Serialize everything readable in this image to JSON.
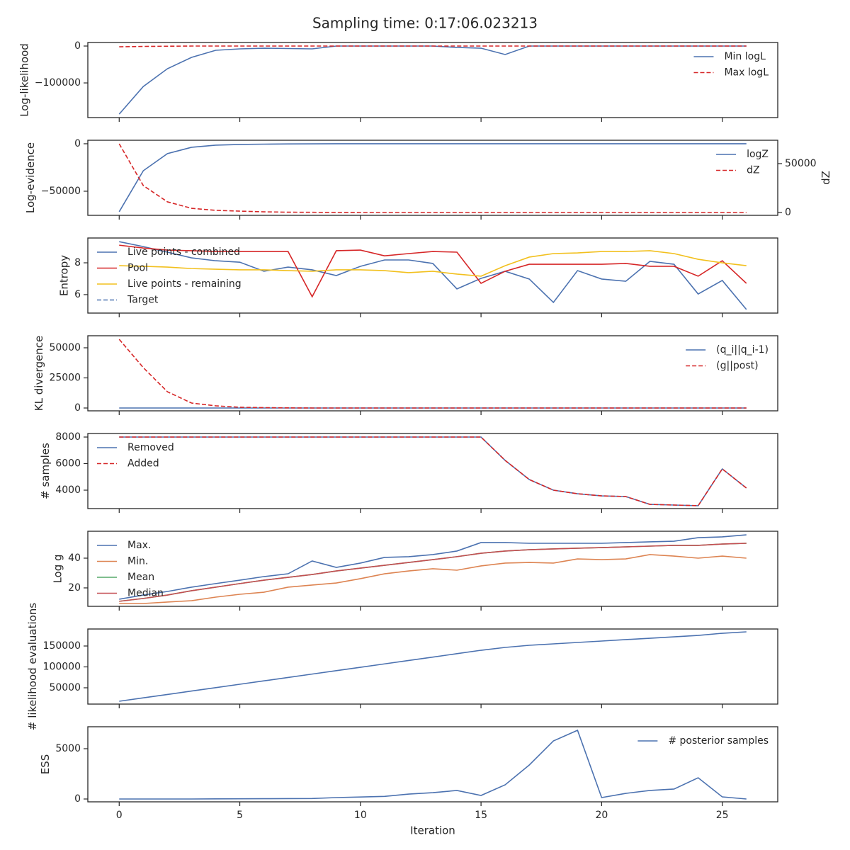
{
  "title": "Sampling time: 0:17:06.023213",
  "chart_data": [
    {
      "type": "line",
      "ylabel": "Log-likelihood",
      "legend": "upper right",
      "x": [
        0,
        1,
        2,
        3,
        4,
        5,
        6,
        7,
        8,
        9,
        10,
        11,
        12,
        13,
        14,
        15,
        16,
        17,
        18,
        19,
        20,
        21,
        22,
        23,
        24,
        25,
        26
      ],
      "xlim": [
        -1.3,
        27.3
      ],
      "ylim": [
        -194000,
        9600
      ],
      "yticks": [
        {
          "value": -100000,
          "label": "−100000"
        },
        0
      ],
      "series": [
        {
          "name": "Min logL",
          "color": "#4c72b0",
          "linestyle": "solid",
          "values": [
            -184600,
            -109600,
            -61500,
            -30800,
            -11500,
            -7700,
            -5800,
            -6700,
            -7700,
            0,
            0,
            0,
            0,
            0,
            -3800,
            -5800,
            -23000,
            0,
            0,
            0,
            0,
            0,
            0,
            0,
            0,
            0,
            0
          ]
        },
        {
          "name": "Max logL",
          "color": "#d62728",
          "linestyle": "dashed",
          "values": [
            -2000,
            -1000,
            -500,
            0,
            0,
            0,
            0,
            0,
            0,
            0,
            0,
            0,
            0,
            0,
            0,
            0,
            0,
            0,
            0,
            0,
            0,
            0,
            0,
            0,
            0,
            0,
            0
          ]
        }
      ]
    },
    {
      "type": "line",
      "ylabel": "Log-evidence",
      "y2label": "dZ",
      "legend": "upper right",
      "x": [
        0,
        1,
        2,
        3,
        4,
        5,
        6,
        7,
        8,
        9,
        10,
        11,
        12,
        13,
        14,
        15,
        16,
        17,
        18,
        19,
        20,
        21,
        22,
        23,
        24,
        25,
        26
      ],
      "xlim": [
        -1.3,
        27.3
      ],
      "ylim": [
        -75400,
        3700
      ],
      "yticks": [
        {
          "value": -50000,
          "label": "−50000"
        },
        0
      ],
      "y2lim": [
        -2900,
        73900
      ],
      "y2ticks": [
        0,
        50000
      ],
      "series": [
        {
          "name": "logZ",
          "color": "#4c72b0",
          "linestyle": "solid",
          "values": [
            -71600,
            -28400,
            -10400,
            -3700,
            -1500,
            -700,
            -400,
            -200,
            -100,
            0,
            0,
            0,
            0,
            0,
            0,
            0,
            0,
            0,
            0,
            0,
            0,
            0,
            0,
            0,
            0,
            0,
            0
          ]
        },
        {
          "name": "dZ",
          "color": "#d62728",
          "linestyle": "dashed",
          "axis": "y2",
          "values": [
            70300,
            27500,
            10900,
            4300,
            2200,
            1400,
            700,
            300,
            200,
            100,
            0,
            0,
            0,
            0,
            0,
            0,
            0,
            0,
            0,
            0,
            0,
            0,
            0,
            0,
            0,
            0,
            0
          ]
        }
      ]
    },
    {
      "type": "line",
      "ylabel": "Entropy",
      "legend": "upper left",
      "x": [
        0,
        1,
        2,
        3,
        4,
        5,
        6,
        7,
        8,
        9,
        10,
        11,
        12,
        13,
        14,
        15,
        16,
        17,
        18,
        19,
        20,
        21,
        22,
        23,
        24,
        25,
        26
      ],
      "xlim": [
        -1.3,
        27.3
      ],
      "ylim": [
        4.84,
        9.56
      ],
      "yticks": [
        6,
        8
      ],
      "series": [
        {
          "name": "Live points - combined",
          "color": "#4c72b0",
          "linestyle": "solid",
          "values": [
            9.33,
            9.02,
            8.67,
            8.31,
            8.13,
            8.04,
            7.47,
            7.73,
            7.56,
            7.2,
            7.78,
            8.18,
            8.18,
            7.96,
            6.36,
            7.02,
            7.47,
            6.98,
            5.51,
            7.51,
            6.98,
            6.84,
            8.09,
            7.91,
            6.04,
            6.89,
            5.07
          ]
        },
        {
          "name": "Pool",
          "color": "#d62728",
          "linestyle": "solid",
          "values": [
            9.11,
            8.93,
            8.8,
            8.76,
            8.71,
            8.71,
            8.71,
            8.71,
            5.87,
            8.76,
            8.8,
            8.44,
            8.58,
            8.71,
            8.67,
            6.71,
            7.47,
            7.91,
            7.91,
            7.91,
            7.91,
            7.96,
            7.78,
            7.78,
            7.16,
            8.13,
            6.71
          ]
        },
        {
          "name": "Live points - remaining",
          "color": "#f2c01e",
          "linestyle": "solid",
          "values": [
            7.82,
            7.78,
            7.73,
            7.64,
            7.6,
            7.56,
            7.56,
            7.51,
            7.47,
            7.56,
            7.56,
            7.51,
            7.38,
            7.47,
            7.29,
            7.16,
            7.82,
            8.36,
            8.58,
            8.62,
            8.71,
            8.71,
            8.76,
            8.58,
            8.22,
            8.0,
            7.82
          ]
        },
        {
          "name": "Target",
          "color": "#4c72b0",
          "linestyle": "dashed",
          "values": [
            null,
            null,
            null,
            null,
            null,
            null,
            null,
            null,
            null,
            null,
            null,
            null,
            null,
            null,
            null,
            null,
            null,
            null,
            null,
            null,
            null,
            null,
            null,
            null,
            null,
            null,
            null
          ]
        }
      ]
    },
    {
      "type": "line",
      "ylabel": "KL divergence",
      "legend": "upper right",
      "x": [
        0,
        1,
        2,
        3,
        4,
        5,
        6,
        7,
        8,
        9,
        10,
        11,
        12,
        13,
        14,
        15,
        16,
        17,
        18,
        19,
        20,
        21,
        22,
        23,
        24,
        25,
        26
      ],
      "xlim": [
        -1.3,
        27.3
      ],
      "ylim": [
        -2350,
        60000
      ],
      "yticks": [
        0,
        25000,
        50000
      ],
      "series": [
        {
          "name": "(q_i||q_i-1)",
          "color": "#4c72b0",
          "linestyle": "solid",
          "values": [
            0,
            0,
            0,
            0,
            0,
            0,
            0,
            0,
            0,
            0,
            0,
            0,
            0,
            0,
            0,
            0,
            0,
            0,
            0,
            0,
            0,
            0,
            0,
            0,
            0,
            0,
            0
          ]
        },
        {
          "name": "(g||post)",
          "color": "#d62728",
          "linestyle": "dashed",
          "values": [
            57060,
            33500,
            13500,
            4100,
            1800,
            600,
            300,
            100,
            0,
            0,
            0,
            0,
            0,
            0,
            0,
            0,
            0,
            0,
            0,
            0,
            0,
            0,
            0,
            0,
            0,
            0,
            0
          ]
        }
      ]
    },
    {
      "type": "line",
      "ylabel": "# samples",
      "legend": "upper left",
      "x": [
        0,
        1,
        2,
        3,
        4,
        5,
        6,
        7,
        8,
        9,
        10,
        11,
        12,
        13,
        14,
        15,
        16,
        17,
        18,
        19,
        20,
        21,
        22,
        23,
        24,
        25,
        26
      ],
      "xlim": [
        -1.3,
        27.3
      ],
      "ylim": [
        2613,
        8267
      ],
      "yticks": [
        4000,
        6000,
        8000
      ],
      "series": [
        {
          "name": "Removed",
          "color": "#4c72b0",
          "linestyle": "solid",
          "values": [
            8000,
            8000,
            8000,
            8000,
            8000,
            8000,
            8000,
            8000,
            8000,
            8000,
            8000,
            8000,
            8000,
            8000,
            8000,
            8000,
            6240,
            4800,
            4000,
            3730,
            3570,
            3520,
            2930,
            2880,
            2830,
            5600,
            4160
          ]
        },
        {
          "name": "Added",
          "color": "#d62728",
          "linestyle": "dashed",
          "values": [
            8000,
            8000,
            8000,
            8000,
            8000,
            8000,
            8000,
            8000,
            8000,
            8000,
            8000,
            8000,
            8000,
            8000,
            8000,
            8000,
            6240,
            4800,
            4000,
            3730,
            3570,
            3520,
            2930,
            2880,
            2830,
            5600,
            4160
          ]
        }
      ]
    },
    {
      "type": "line",
      "ylabel": "Log g",
      "legend": "upper left",
      "x": [
        0,
        1,
        2,
        3,
        4,
        5,
        6,
        7,
        8,
        9,
        10,
        11,
        12,
        13,
        14,
        15,
        16,
        17,
        18,
        19,
        20,
        21,
        22,
        23,
        24,
        25,
        26
      ],
      "xlim": [
        -1.3,
        27.3
      ],
      "ylim": [
        7.6,
        58.1
      ],
      "yticks": [
        20,
        40
      ],
      "series": [
        {
          "name": "Max.",
          "color": "#4c72b0",
          "linestyle": "solid",
          "values": [
            12.4,
            15.2,
            17.6,
            20.5,
            22.9,
            25.2,
            27.6,
            29.5,
            38.1,
            33.8,
            36.7,
            40.5,
            41,
            42.4,
            44.8,
            50.5,
            50.5,
            50,
            50,
            50,
            50,
            50.5,
            51,
            51.4,
            53.8,
            54.3,
            55.7
          ]
        },
        {
          "name": "Min.",
          "color": "#dd8452",
          "linestyle": "solid",
          "values": [
            9.5,
            9.5,
            10.5,
            11.4,
            13.8,
            15.7,
            17.1,
            20.5,
            21.9,
            23.3,
            26.2,
            29.5,
            31.4,
            32.9,
            31.9,
            34.8,
            36.7,
            37.1,
            36.7,
            39.5,
            39,
            39.5,
            42.4,
            41.4,
            40,
            41.4,
            40
          ]
        },
        {
          "name": "Mean",
          "color": "#55a868",
          "linestyle": "solid",
          "values": [
            11,
            12.9,
            15.2,
            18.1,
            20.5,
            22.9,
            25.2,
            27.1,
            29,
            31.4,
            33.3,
            35.2,
            37.1,
            39,
            41,
            43.3,
            44.8,
            45.7,
            46.2,
            46.7,
            47.1,
            47.6,
            48.1,
            48.6,
            48.6,
            49.5,
            50
          ]
        },
        {
          "name": "Median",
          "color": "#c44e52",
          "linestyle": "solid",
          "values": [
            11,
            12.9,
            15.2,
            18.1,
            20.5,
            22.9,
            25.2,
            27.1,
            29,
            31.4,
            33.3,
            35.2,
            37.1,
            39,
            41,
            43.3,
            44.8,
            45.7,
            46.2,
            46.7,
            47.1,
            47.6,
            48.1,
            48.6,
            48.6,
            49.5,
            50
          ]
        }
      ]
    },
    {
      "type": "line",
      "ylabel": "# likelihood evaluations",
      "x": [
        0,
        1,
        2,
        3,
        4,
        5,
        6,
        7,
        8,
        9,
        10,
        11,
        12,
        13,
        14,
        15,
        16,
        17,
        18,
        19,
        20,
        21,
        22,
        23,
        24,
        25,
        26
      ],
      "xlim": [
        -1.3,
        27.3
      ],
      "ylim": [
        11000,
        190700
      ],
      "yticks": [
        50000,
        100000,
        150000
      ],
      "series": [
        {
          "name": "# likelihood evaluations",
          "color": "#4c72b0",
          "linestyle": "solid",
          "values": [
            17800,
            25930,
            34060,
            42190,
            50320,
            58450,
            66580,
            74710,
            82840,
            90970,
            99100,
            107230,
            115360,
            123490,
            131620,
            139800,
            146600,
            151700,
            155100,
            158500,
            161900,
            165300,
            168600,
            172000,
            175400,
            180500,
            183900
          ]
        }
      ]
    },
    {
      "type": "line",
      "ylabel": "ESS",
      "xlabel": "Iteration",
      "legend": "upper right",
      "x": [
        0,
        1,
        2,
        3,
        4,
        5,
        6,
        7,
        8,
        9,
        10,
        11,
        12,
        13,
        14,
        15,
        16,
        17,
        18,
        19,
        20,
        21,
        22,
        23,
        24,
        25,
        26
      ],
      "xlim": [
        -1.3,
        27.3
      ],
      "xticks": [
        0,
        5,
        10,
        15,
        20,
        25
      ],
      "ylim": [
        -282,
        7183
      ],
      "yticks": [
        0,
        5000
      ],
      "series": [
        {
          "name": "# posterior samples",
          "color": "#4c72b0",
          "linestyle": "solid",
          "values": [
            0,
            0,
            0,
            0,
            10,
            20,
            30,
            40,
            50,
            140,
            200,
            260,
            490,
            630,
            850,
            350,
            1410,
            3380,
            5770,
            6830,
            140,
            560,
            850,
            990,
            2110,
            210,
            0
          ]
        }
      ]
    }
  ]
}
